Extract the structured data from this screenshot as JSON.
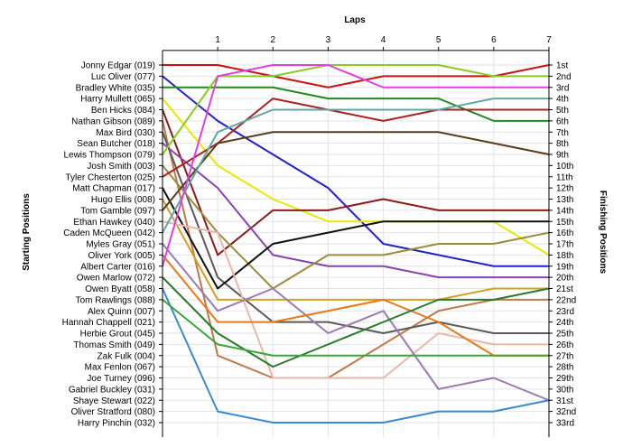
{
  "chart_data": {
    "type": "line",
    "title": "Laps",
    "ylabel_left": "Starting Positions",
    "ylabel_right": "Finishing Positions",
    "laps": [
      0,
      1,
      2,
      3,
      4,
      5,
      6,
      7
    ],
    "lap_tick_labels": [
      "1",
      "2",
      "3",
      "4",
      "5",
      "6",
      "7"
    ],
    "grid": true,
    "positions_count": 33,
    "starting_labels": [
      "Jonny Edgar (019)",
      "Luc Oliver (077)",
      "Bradley White (035)",
      "Harry Mullett (065)",
      "Ben Hicks (084)",
      "Nathan Gibson (089)",
      "Max Bird (030)",
      "Sean Butcher (018)",
      "Lewis Thompson (079)",
      "Josh Smith (003)",
      "Tyler Chesterton (025)",
      "Matt Chapman (017)",
      "Hugo Ellis (008)",
      "Tom Gamble (097)",
      "Ethan Hawkey (040)",
      "Caden McQueen (042)",
      "Myles Gray (051)",
      "Oliver York (005)",
      "Albert Carter (016)",
      "Owen Marlow (072)",
      "Owen Byatt (058)",
      "Tom Rawlings (088)",
      "Alex Quinn (007)",
      "Hannah Chappell (021)",
      "Herbie Grout (045)",
      "Thomas Smith (049)",
      "Zak Fulk (004)",
      "Max Fenlon (067)",
      "Joe Turney (096)",
      "Gabriel Buckley (031)",
      "Shaye Stewart (022)",
      "Oliver Stratford (080)",
      "Harry Pinchin (032)"
    ],
    "finishing_labels": [
      "1st",
      "2nd",
      "3rd",
      "4th",
      "5th",
      "6th",
      "7th",
      "8th",
      "9th",
      "10th",
      "11th",
      "12th",
      "13th",
      "14th",
      "15th",
      "16th",
      "17th",
      "18th",
      "19th",
      "20th",
      "21st",
      "22nd",
      "23rd",
      "24th",
      "25th",
      "26th",
      "27th",
      "28th",
      "29th",
      "30th",
      "31st",
      "32nd",
      "33rd"
    ],
    "series": [
      {
        "color": "#cc1111",
        "positions": [
          1,
          1,
          2,
          3,
          2,
          2,
          2,
          1
        ]
      },
      {
        "color": "#2222cc",
        "positions": [
          2,
          6,
          9,
          12,
          17,
          18,
          19,
          19
        ]
      },
      {
        "color": "#228822",
        "positions": [
          3,
          3,
          3,
          4,
          4,
          4,
          6,
          6
        ]
      },
      {
        "color": "#e8e800",
        "positions": [
          4,
          10,
          13,
          15,
          15,
          15,
          15,
          18
        ]
      },
      {
        "color": "#8b1a1a",
        "positions": [
          5,
          18,
          14,
          14,
          13,
          14,
          14,
          14
        ]
      },
      {
        "color": "#c07848",
        "positions": [
          6,
          27,
          29,
          29,
          26,
          23,
          22,
          22
        ]
      },
      {
        "color": "#5a5a5a",
        "positions": [
          7,
          20,
          24,
          24,
          25,
          24,
          25,
          25
        ]
      },
      {
        "color": "#8844aa",
        "positions": [
          8,
          12,
          18,
          19,
          19,
          20,
          20,
          20
        ]
      },
      {
        "color": "#88cc22",
        "positions": [
          9,
          2,
          2,
          1,
          1,
          1,
          2,
          2
        ]
      },
      {
        "color": "#9c8c3c",
        "positions": [
          10,
          16,
          21,
          18,
          18,
          17,
          17,
          16
        ]
      },
      {
        "color": "#aa2222",
        "positions": [
          11,
          8,
          4,
          5,
          6,
          5,
          5,
          5
        ]
      },
      {
        "color": "#111111",
        "positions": [
          12,
          21,
          17,
          16,
          15,
          15,
          15,
          15
        ]
      },
      {
        "color": "#d4a020",
        "positions": [
          13,
          22,
          22,
          22,
          22,
          22,
          21,
          21
        ]
      },
      {
        "color": "#5a3a1a",
        "positions": [
          14,
          8,
          7,
          7,
          7,
          7,
          8,
          9
        ]
      },
      {
        "color": "#e8b8a8",
        "positions": [
          15,
          16,
          29,
          29,
          29,
          25,
          26,
          26
        ]
      },
      {
        "color": "#60a8a0",
        "positions": [
          16,
          7,
          5,
          5,
          5,
          5,
          4,
          4
        ]
      },
      {
        "color": "#9a7ab0",
        "positions": [
          17,
          23,
          21,
          25,
          23,
          30,
          29,
          31
        ]
      },
      {
        "color": "#e87818",
        "positions": [
          18,
          24,
          24,
          23,
          22,
          24,
          27,
          27
        ]
      },
      {
        "color": "#e040e0",
        "positions": [
          19,
          2,
          1,
          1,
          3,
          3,
          3,
          3
        ]
      },
      {
        "color": "#2a7a2a",
        "positions": [
          20,
          25,
          28,
          26,
          24,
          22,
          22,
          21
        ]
      },
      {
        "color": "#3a8ad0",
        "positions": [
          21,
          32,
          33,
          33,
          33,
          32,
          32,
          31
        ]
      },
      {
        "color": "#38a838",
        "positions": [
          22,
          26,
          27,
          27,
          27,
          27,
          27,
          27
        ]
      }
    ]
  }
}
